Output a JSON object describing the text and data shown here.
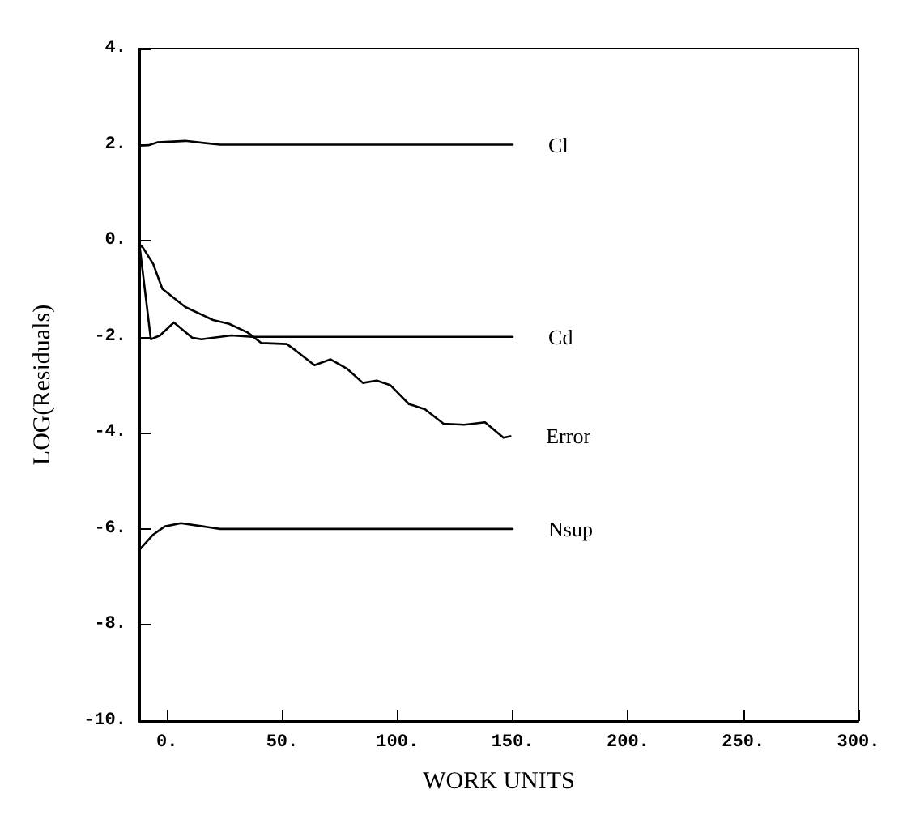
{
  "chart_data": {
    "type": "line",
    "xlabel": "WORK UNITS",
    "ylabel": "LOG(Residuals)",
    "xlim": [
      -12,
      300
    ],
    "ylim": [
      -10,
      4
    ],
    "xticks": [
      {
        "value": 0,
        "label": "0."
      },
      {
        "value": 50,
        "label": "50."
      },
      {
        "value": 100,
        "label": "100."
      },
      {
        "value": 150,
        "label": "150."
      },
      {
        "value": 200,
        "label": "200."
      },
      {
        "value": 250,
        "label": "250."
      },
      {
        "value": 300,
        "label": "300."
      }
    ],
    "yticks": [
      {
        "value": -10,
        "label": "-10."
      },
      {
        "value": -8,
        "label": "-8."
      },
      {
        "value": -6,
        "label": "-6."
      },
      {
        "value": -4,
        "label": "-4."
      },
      {
        "value": -2,
        "label": "-2."
      },
      {
        "value": 0,
        "label": "0."
      },
      {
        "value": 2,
        "label": "2."
      },
      {
        "value": 4,
        "label": "4."
      }
    ],
    "grid": false,
    "legend": false,
    "marker": "none",
    "line_style": "solid",
    "series": [
      {
        "name": "Cl",
        "color": "#000000",
        "x": [
          -12,
          -8,
          -4,
          8,
          23,
          150
        ],
        "values": [
          1.98,
          1.99,
          2.05,
          2.08,
          2.0,
          2.0
        ]
      },
      {
        "name": "Cd",
        "color": "#000000",
        "x": [
          -12,
          -7,
          -3,
          3,
          11,
          15,
          28,
          37,
          150
        ],
        "values": [
          -0.05,
          -2.05,
          -1.97,
          -1.7,
          -2.02,
          -2.05,
          -1.97,
          -2.0,
          -2.0
        ]
      },
      {
        "name": "Error",
        "color": "#000000",
        "x": [
          -12,
          -11,
          -6,
          -2,
          8,
          20,
          27,
          35,
          41,
          52,
          56,
          64,
          71,
          78,
          85,
          91,
          97,
          105,
          112,
          120,
          129,
          138,
          146,
          149
        ],
        "values": [
          -0.16,
          -0.1,
          -0.48,
          -1.0,
          -1.38,
          -1.65,
          -1.73,
          -1.91,
          -2.13,
          -2.15,
          -2.29,
          -2.59,
          -2.47,
          -2.66,
          -2.96,
          -2.91,
          -3.01,
          -3.4,
          -3.51,
          -3.81,
          -3.83,
          -3.78,
          -4.1,
          -4.07
        ]
      },
      {
        "name": "Nsup",
        "color": "#000000",
        "x": [
          -12,
          -9,
          -6,
          -1,
          6,
          16,
          23,
          150
        ],
        "values": [
          -6.44,
          -6.28,
          -6.12,
          -5.95,
          -5.88,
          -5.95,
          -6.0,
          -6.0
        ]
      }
    ]
  }
}
